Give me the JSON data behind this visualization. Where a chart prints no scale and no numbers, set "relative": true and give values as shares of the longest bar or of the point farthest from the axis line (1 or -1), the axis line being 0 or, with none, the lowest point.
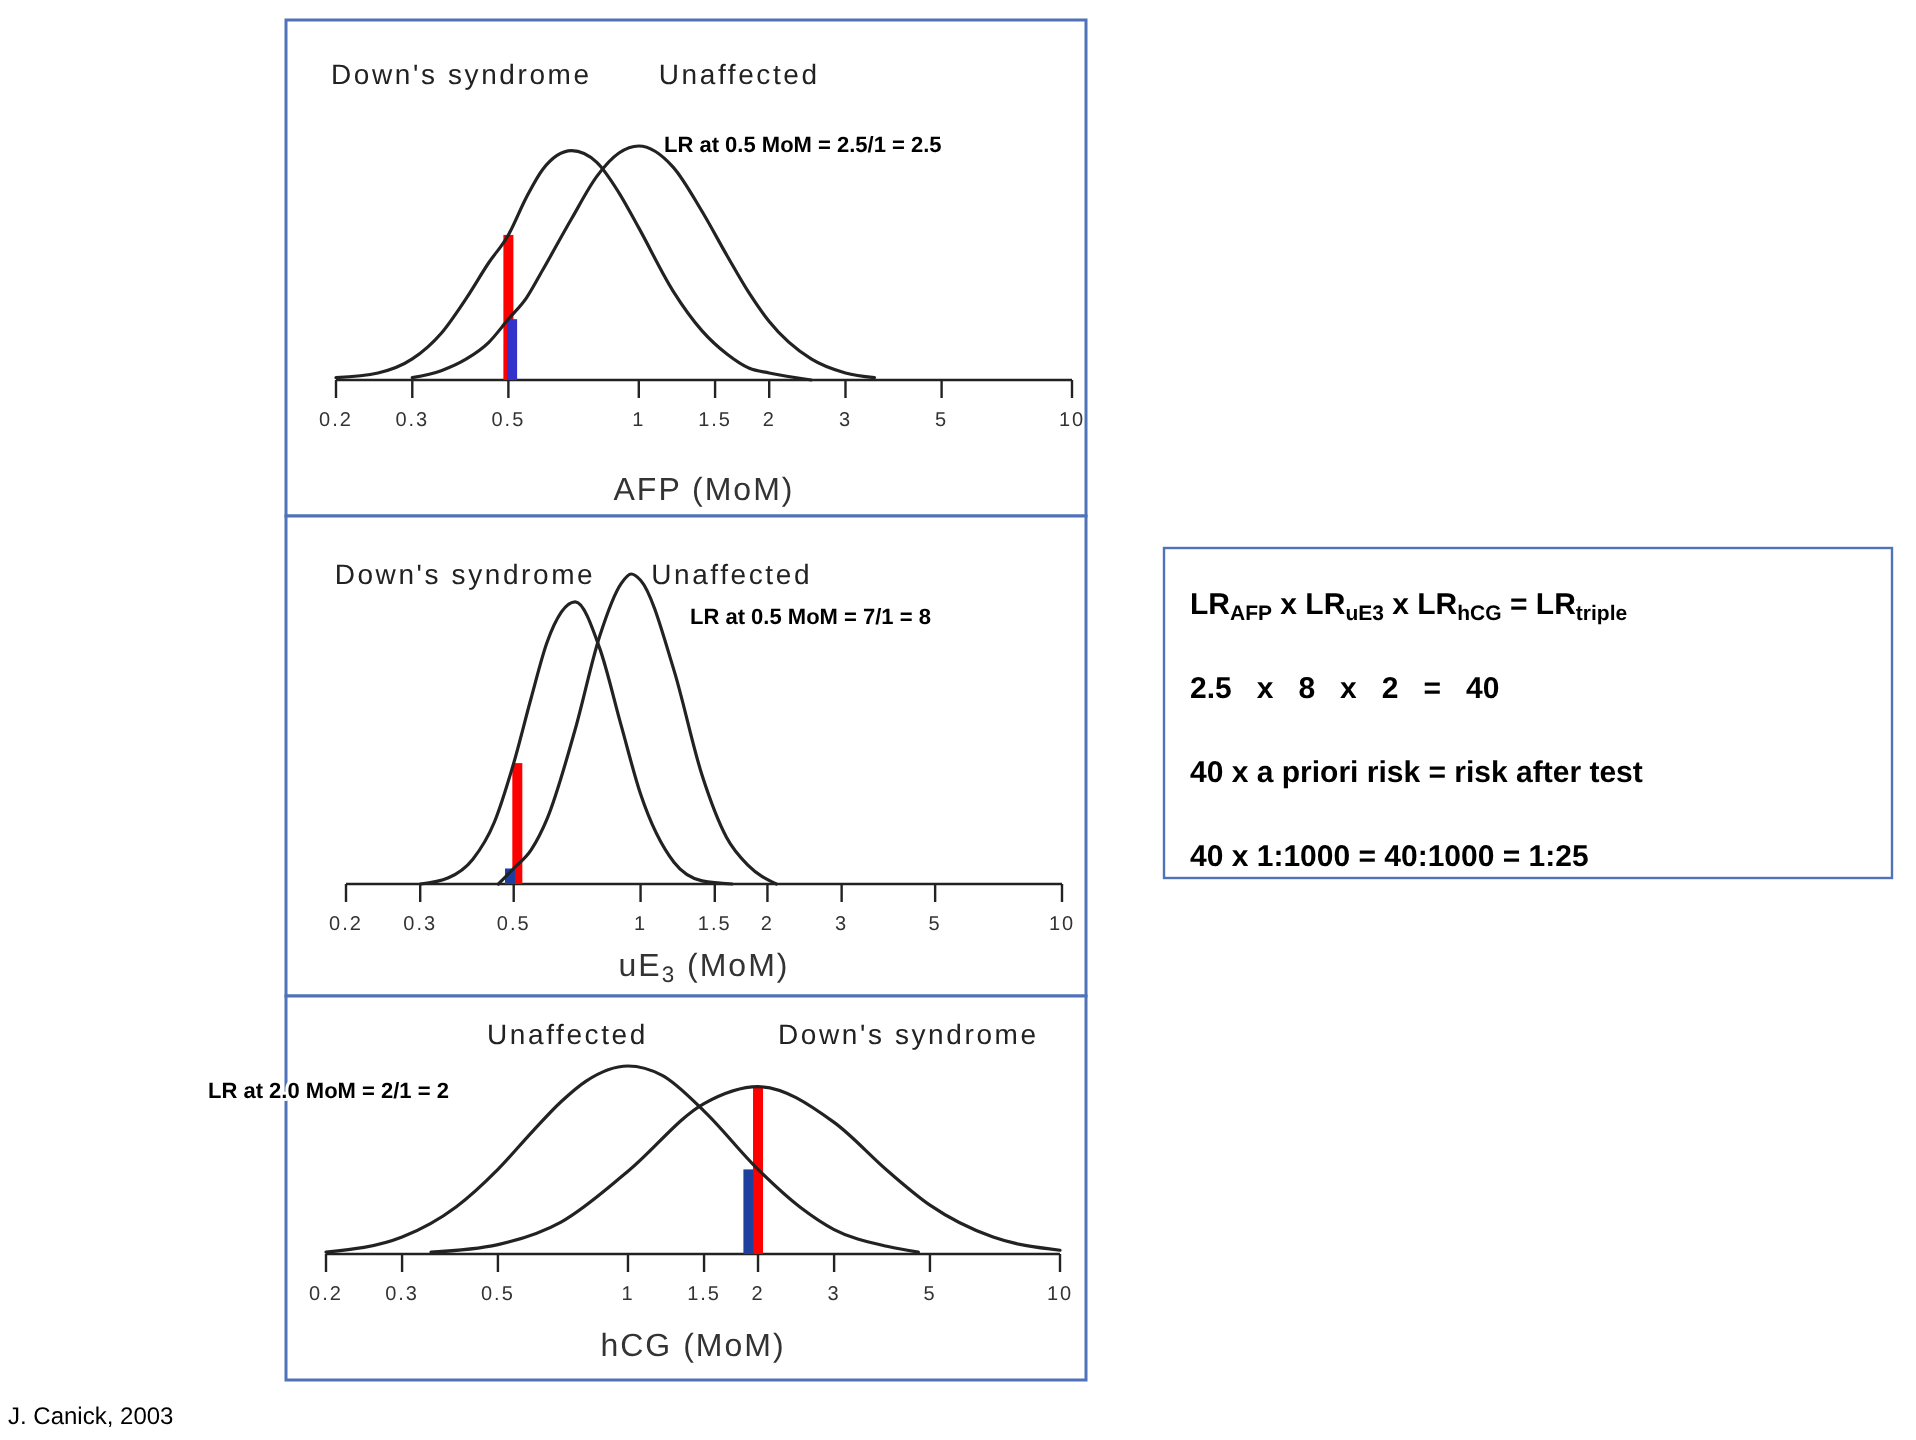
{
  "chart_data": [
    {
      "type": "line",
      "xlabel": "AFP (MoM)",
      "relative": true,
      "log": "x",
      "xlim": [
        0.2,
        10
      ],
      "xticks": [
        0.2,
        0.3,
        0.5,
        1,
        1.5,
        2,
        3,
        5,
        10
      ],
      "annotations": [
        "LR at 0.5 MoM = 2.5/1 = 2.5"
      ],
      "series": [
        {
          "name": "Down's syndrome",
          "color": "#222222",
          "x": [
            0.2,
            0.25,
            0.3,
            0.35,
            0.4,
            0.45,
            0.5,
            0.55,
            0.6,
            0.7,
            0.8,
            0.9,
            1,
            1.2,
            1.4,
            1.6,
            1.8,
            2,
            2.5
          ],
          "values": [
            0.01,
            0.03,
            0.09,
            0.2,
            0.35,
            0.5,
            0.62,
            0.78,
            0.9,
            0.98,
            0.93,
            0.8,
            0.65,
            0.38,
            0.21,
            0.11,
            0.05,
            0.03,
            0
          ]
        },
        {
          "name": "Unaffected",
          "color": "#222222",
          "x": [
            0.3,
            0.35,
            0.4,
            0.45,
            0.5,
            0.55,
            0.6,
            0.7,
            0.8,
            0.9,
            1,
            1.2,
            1.4,
            1.6,
            1.8,
            2,
            2.5,
            3,
            3.5
          ],
          "values": [
            0.01,
            0.04,
            0.09,
            0.16,
            0.26,
            0.35,
            0.47,
            0.69,
            0.87,
            0.97,
            1,
            0.91,
            0.72,
            0.53,
            0.37,
            0.25,
            0.09,
            0.03,
            0.01
          ]
        },
        {
          "type": "bar",
          "color": "#ff0000",
          "x": [
            0.5
          ],
          "values": [
            0.62
          ]
        },
        {
          "type": "bar",
          "color": "#3333cc",
          "x": [
            0.51
          ],
          "values": [
            0.26
          ]
        }
      ]
    },
    {
      "type": "line",
      "xlabel": "uE$_{3}$ (MoM)",
      "relative": true,
      "log": "x",
      "xlim": [
        0.2,
        10
      ],
      "xticks": [
        0.2,
        0.3,
        0.5,
        1,
        1.5,
        2,
        3,
        5,
        10
      ],
      "annotations": [
        "LR at 0.5 MoM = 7/1 = 8"
      ],
      "series": [
        {
          "name": "Down's syndrome",
          "color": "#222222",
          "x": [
            0.3,
            0.35,
            0.4,
            0.45,
            0.5,
            0.55,
            0.6,
            0.7,
            0.8,
            0.9,
            1,
            1.2,
            1.4,
            1.65
          ],
          "values": [
            0,
            0.02,
            0.08,
            0.2,
            0.39,
            0.6,
            0.78,
            0.91,
            0.76,
            0.51,
            0.29,
            0.07,
            0.01,
            0
          ]
        },
        {
          "name": "Unaffected",
          "color": "#222222",
          "x": [
            0.46,
            0.5,
            0.55,
            0.6,
            0.7,
            0.8,
            0.9,
            0.95,
            1,
            1.2,
            1.4,
            1.6,
            1.8,
            2.1
          ],
          "values": [
            0,
            0.05,
            0.11,
            0.21,
            0.5,
            0.8,
            0.97,
            1,
            0.98,
            0.69,
            0.35,
            0.15,
            0.06,
            0
          ]
        },
        {
          "type": "bar",
          "color": "#ff0000",
          "x": [
            0.51
          ],
          "values": [
            0.39
          ]
        },
        {
          "type": "bar",
          "color": "#1f3f9f",
          "x": [
            0.49
          ],
          "values": [
            0.05
          ]
        }
      ]
    },
    {
      "type": "line",
      "xlabel": "hCG (MoM)",
      "relative": true,
      "log": "x",
      "xlim": [
        0.2,
        10
      ],
      "xticks": [
        0.2,
        0.3,
        0.5,
        1,
        1.5,
        2,
        3,
        5,
        10
      ],
      "annotations": [
        "LR at 2.0 MoM = 2/1 = 2",
        "J. Canick, 2003"
      ],
      "series": [
        {
          "name": "Unaffected",
          "color": "#222222",
          "x": [
            0.2,
            0.3,
            0.4,
            0.5,
            0.6,
            0.7,
            0.8,
            1,
            1.2,
            1.5,
            2,
            2.5,
            3,
            4,
            4.7
          ],
          "values": [
            0.01,
            0.09,
            0.25,
            0.45,
            0.65,
            0.81,
            0.92,
            1,
            0.95,
            0.76,
            0.45,
            0.25,
            0.13,
            0.04,
            0.01
          ]
        },
        {
          "name": "Down's syndrome",
          "color": "#222222",
          "x": [
            0.35,
            0.5,
            0.7,
            1,
            1.5,
            2,
            3,
            4,
            5,
            7,
            10
          ],
          "values": [
            0.01,
            0.05,
            0.17,
            0.44,
            0.8,
            0.89,
            0.7,
            0.44,
            0.26,
            0.09,
            0.02
          ]
        },
        {
          "type": "bar",
          "color": "#ff0000",
          "x": [
            2
          ],
          "values": [
            0.89
          ]
        },
        {
          "type": "bar",
          "color": "#1f3f9f",
          "x": [
            1.9
          ],
          "values": [
            0.45
          ]
        }
      ]
    },
    {
      "type": "other",
      "annotations": [
        "LR$_{AFP}$ x LR$_{uE3}$ x LR$_{hCG}$ = LR$_{triple}$",
        "2.5   x   8   x   2   =   40",
        "40 x a priori risk = risk after test",
        "40 x 1:1000 = 40:1000 = 1:25"
      ]
    }
  ]
}
